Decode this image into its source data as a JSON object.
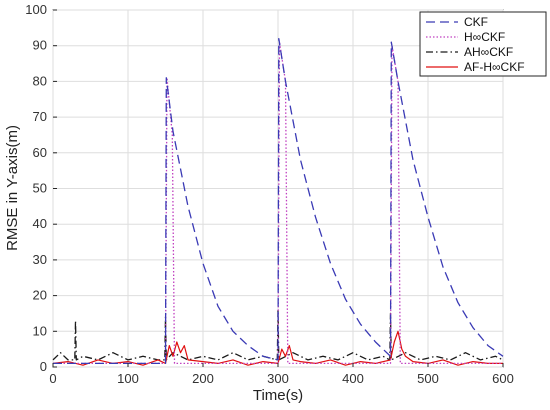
{
  "chart_data": {
    "type": "line",
    "xlabel": "Time(s)",
    "ylabel": "RMSE in Y-axis(m)",
    "xlim": [
      0,
      600
    ],
    "ylim": [
      0,
      100
    ],
    "xticks": [
      "0",
      "100",
      "200",
      "300",
      "400",
      "500",
      "600"
    ],
    "yticks": [
      "0",
      "10",
      "20",
      "30",
      "40",
      "50",
      "60",
      "70",
      "80",
      "90",
      "100"
    ],
    "grid": true,
    "legend_position": "top-right",
    "series": [
      {
        "name": "CKF",
        "color": "#3a3ab5",
        "style": "dashed",
        "x": [
          0,
          150,
          151,
          160,
          180,
          200,
          220,
          240,
          260,
          280,
          300,
          301,
          310,
          330,
          350,
          370,
          390,
          410,
          430,
          450,
          451,
          460,
          480,
          500,
          520,
          540,
          560,
          580,
          600
        ],
        "y": [
          1,
          1,
          81,
          66,
          45,
          29,
          17,
          10,
          6,
          3,
          2,
          92,
          80,
          58,
          42,
          29,
          19,
          12,
          7,
          3,
          91,
          80,
          58,
          42,
          28,
          18,
          11,
          6,
          3
        ]
      },
      {
        "name": "H∞CKF",
        "color": "#c040c0",
        "style": "dotted",
        "x": [
          0,
          150,
          152,
          159,
          162,
          300,
          302,
          310,
          313,
          450,
          452,
          460,
          463,
          600
        ],
        "y": [
          1,
          1,
          81,
          65,
          1,
          1,
          91,
          80,
          1,
          1,
          90,
          80,
          1,
          1
        ]
      },
      {
        "name": "AH∞CKF",
        "color": "#1a1a1a",
        "style": "dashdot",
        "x": [
          0,
          10,
          20,
          29,
          30,
          31,
          40,
          60,
          80,
          100,
          120,
          140,
          149,
          150,
          151,
          160,
          180,
          200,
          220,
          240,
          260,
          280,
          299,
          300,
          301,
          320,
          340,
          360,
          380,
          400,
          420,
          440,
          449,
          450,
          451,
          470,
          490,
          510,
          530,
          550,
          570,
          590,
          600
        ],
        "y": [
          2,
          4,
          2,
          2,
          13,
          2,
          3,
          2,
          4,
          2,
          3,
          2,
          2,
          14,
          2,
          4,
          2,
          3,
          2,
          4,
          2,
          3,
          2,
          16,
          2,
          4,
          2,
          3,
          2,
          4,
          2,
          3,
          2,
          15,
          2,
          4,
          2,
          3,
          2,
          4,
          2,
          3,
          2
        ]
      },
      {
        "name": "AF-H∞CKF",
        "color": "#e01010",
        "style": "solid",
        "x": [
          0,
          20,
          40,
          60,
          80,
          100,
          120,
          140,
          150,
          155,
          160,
          165,
          170,
          175,
          180,
          200,
          220,
          240,
          260,
          280,
          300,
          305,
          310,
          315,
          320,
          330,
          350,
          370,
          390,
          410,
          430,
          450,
          455,
          460,
          465,
          470,
          480,
          500,
          520,
          540,
          560,
          580,
          600
        ],
        "y": [
          1,
          1.5,
          0.5,
          2,
          1,
          1.5,
          0.5,
          2,
          1,
          6,
          3,
          7,
          4,
          6,
          2,
          1.5,
          1,
          2,
          0.5,
          1.5,
          1,
          5,
          3,
          6,
          2,
          1.5,
          1,
          2,
          0.5,
          1.5,
          1,
          2,
          7,
          10,
          5,
          3,
          1.5,
          1,
          2,
          0.5,
          1.5,
          1,
          1
        ]
      }
    ]
  }
}
